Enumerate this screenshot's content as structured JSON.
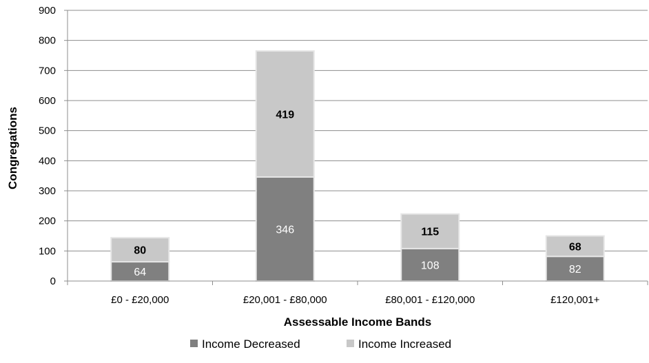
{
  "chart_data": {
    "type": "bar",
    "stacked": true,
    "categories": [
      "£0 - £20,000",
      "£20,001 - £80,000",
      "£80,001 - £120,000",
      "£120,001+"
    ],
    "series": [
      {
        "name": "Income Decreased",
        "values": [
          64,
          346,
          108,
          82
        ],
        "color": "#808080",
        "label_color": "#ffffff"
      },
      {
        "name": "Income Increased",
        "values": [
          80,
          419,
          115,
          68
        ],
        "color": "#c8c8c8",
        "label_color": "#000000"
      }
    ],
    "title": "",
    "xlabel": "Assessable Income Bands",
    "ylabel": "Congregations",
    "ylim": [
      0,
      900
    ],
    "yticks": [
      0,
      100,
      200,
      300,
      400,
      500,
      600,
      700,
      800,
      900
    ],
    "grid": true,
    "legend_position": "bottom"
  }
}
